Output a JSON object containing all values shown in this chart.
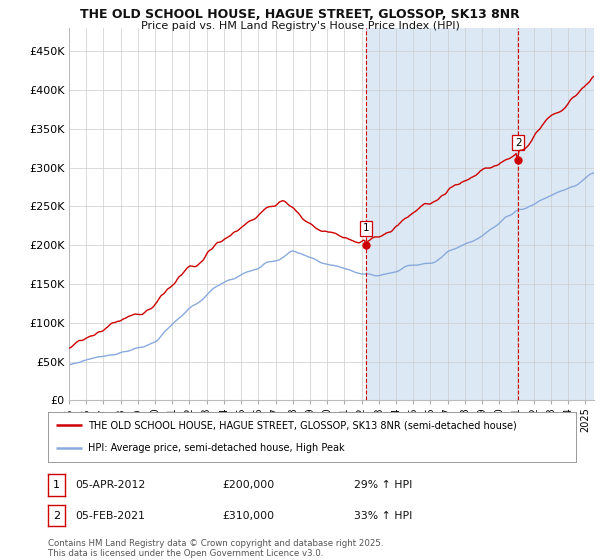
{
  "title": "THE OLD SCHOOL HOUSE, HAGUE STREET, GLOSSOP, SK13 8NR",
  "subtitle": "Price paid vs. HM Land Registry's House Price Index (HPI)",
  "xlim_start": 1995,
  "xlim_end": 2025.5,
  "ylim": [
    0,
    480000
  ],
  "yticks": [
    0,
    50000,
    100000,
    150000,
    200000,
    250000,
    300000,
    350000,
    400000,
    450000
  ],
  "ytick_labels": [
    "£0",
    "£50K",
    "£100K",
    "£150K",
    "£200K",
    "£250K",
    "£300K",
    "£350K",
    "£400K",
    "£450K"
  ],
  "purchase1_date": 2012.27,
  "purchase1_price": 200000,
  "purchase2_date": 2021.09,
  "purchase2_price": 310000,
  "line_color_property": "#cc0000",
  "line_color_hpi": "#88aadd",
  "shade_color": "#dde8f5",
  "legend_property": "THE OLD SCHOOL HOUSE, HAGUE STREET, GLOSSOP, SK13 8NR (semi-detached house)",
  "legend_hpi": "HPI: Average price, semi-detached house, High Peak",
  "footnote": "Contains HM Land Registry data © Crown copyright and database right 2025.\nThis data is licensed under the Open Government Licence v3.0.",
  "background_color": "#ffffff",
  "grid_color": "#cccccc"
}
